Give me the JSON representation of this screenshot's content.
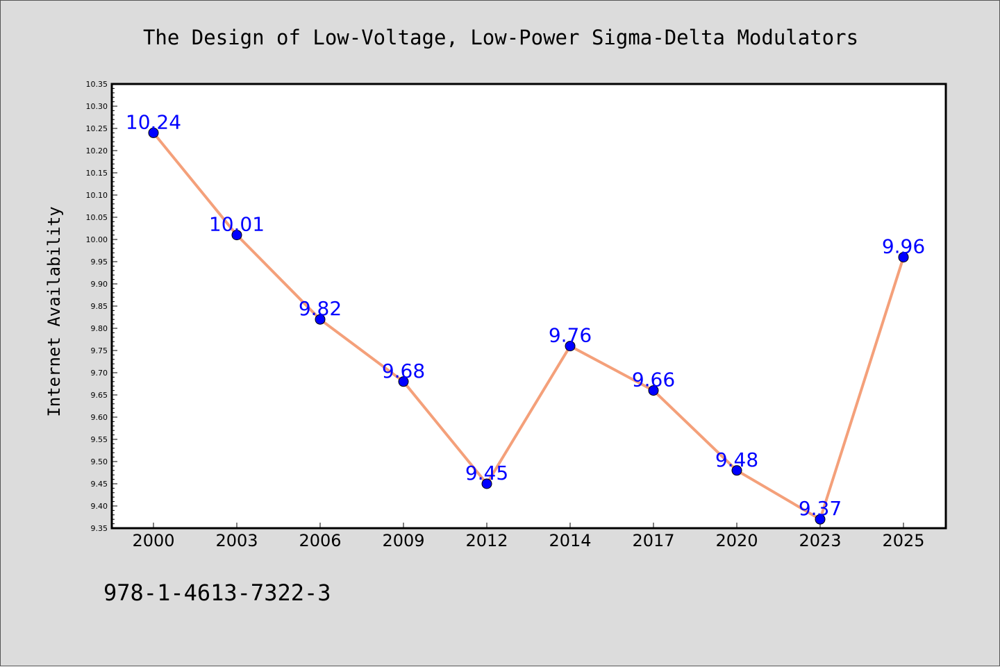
{
  "chart_data": {
    "type": "line",
    "title": "The Design of Low-Voltage, Low-Power Sigma-Delta Modulators",
    "xlabel": "",
    "ylabel": "Internet Availability",
    "categories": [
      "2000",
      "2003",
      "2006",
      "2009",
      "2012",
      "2014",
      "2017",
      "2020",
      "2023",
      "2025"
    ],
    "series": [
      {
        "values": [
          10.24,
          10.01,
          9.82,
          9.68,
          9.45,
          9.76,
          9.66,
          9.48,
          9.37,
          9.96
        ],
        "line_color": "#f4a07a",
        "marker_color": "#0000ff",
        "label_color": "#0000ff"
      }
    ],
    "data_labels": [
      "10.24",
      "10.01",
      "9.82",
      "9.68",
      "9.45",
      "9.76",
      "9.66",
      "9.48",
      "9.37",
      "9.96"
    ],
    "ylim": [
      9.35,
      10.35
    ],
    "y_ticks": [
      "9.35",
      "9.40",
      "9.45",
      "9.50",
      "9.55",
      "9.60",
      "9.65",
      "9.70",
      "9.75",
      "9.80",
      "9.85",
      "9.90",
      "9.95",
      "10.00",
      "10.05",
      "10.10",
      "10.15",
      "10.20",
      "10.25",
      "10.30",
      "10.35"
    ],
    "grid": false,
    "legend": "none"
  },
  "footer": {
    "isbn": "978-1-4613-7322-3"
  },
  "colors": {
    "figure_background": "#dcdcdc",
    "plot_background": "#ffffff",
    "axis": "#000000"
  }
}
